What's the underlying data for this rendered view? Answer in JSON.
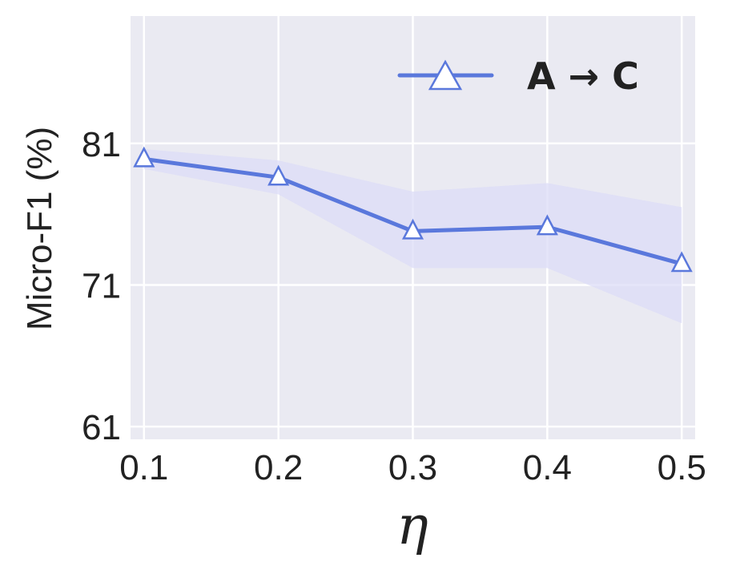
{
  "chart_data": {
    "type": "line",
    "x": [
      0.1,
      0.2,
      0.3,
      0.4,
      0.5
    ],
    "x_tick_labels": [
      "0.1",
      "0.2",
      "0.3",
      "0.4",
      "0.5"
    ],
    "xlim": [
      0.09,
      0.51
    ],
    "xlabel": "η",
    "ylabel": "Micro-F1 (%)",
    "ylim": [
      60.1,
      90
    ],
    "y_ticks": [
      61,
      71,
      81
    ],
    "y_tick_labels": [
      "61",
      "71",
      "81"
    ],
    "grid": true,
    "legend_position": "top-right",
    "series": [
      {
        "name": "A → C",
        "values": [
          79.9,
          78.6,
          74.8,
          75.1,
          72.5
        ],
        "band_upper": [
          80.6,
          79.8,
          77.6,
          78.2,
          76.5
        ],
        "band_lower": [
          79.2,
          77.4,
          72.2,
          72.2,
          68.3
        ],
        "marker": "triangle-up",
        "color": "#5a78dc",
        "band_color": "#dcdcf7"
      }
    ],
    "background_color": "#eaeaf2",
    "grid_color": "#ffffff"
  }
}
